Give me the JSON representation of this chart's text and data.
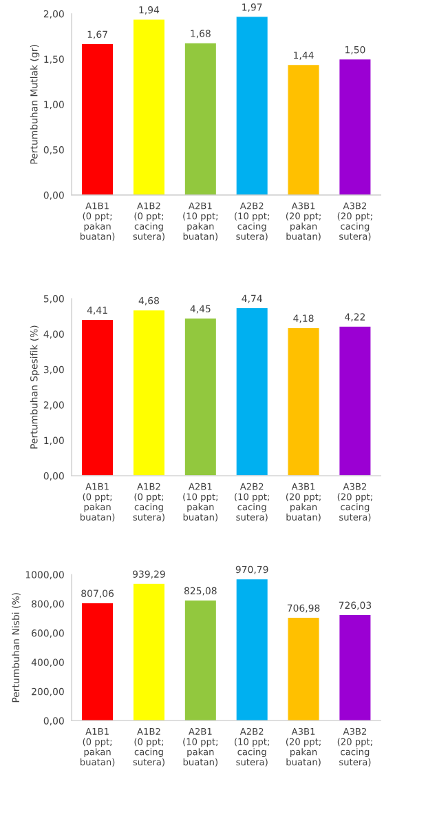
{
  "chart_data": [
    {
      "type": "bar",
      "ylabel": "Pertumbuhan Mutlak (gr)",
      "categories": [
        "A1B1\n(0 ppt;\npakan\nbuatan)",
        "A1B2\n(0 ppt;\ncacing\nsutera)",
        "A2B1\n(10 ppt;\npakan\nbuatan)",
        "A2B2\n(10 ppt;\ncacing\nsutera)",
        "A3B1\n(20 ppt;\npakan\nbuatan)",
        "A3B2\n(20 ppt;\ncacing\nsutera)"
      ],
      "values": [
        1.67,
        1.94,
        1.68,
        1.97,
        1.44,
        1.5
      ],
      "value_labels": [
        "1,67",
        "1,94",
        "1,68",
        "1,97",
        "1,44",
        "1,50"
      ],
      "colors": [
        "#ff0000",
        "#ffff00",
        "#92c83e",
        "#00b0f0",
        "#ffc000",
        "#9b00d3"
      ],
      "ylim": [
        0,
        2
      ],
      "yticks": [
        {
          "value": 0,
          "label": "0,00"
        },
        {
          "value": 0.5,
          "label": "0,50"
        },
        {
          "value": 1,
          "label": "1,00"
        },
        {
          "value": 1.5,
          "label": "1,50"
        },
        {
          "value": 2,
          "label": "2,00"
        }
      ],
      "grid": false,
      "legend": false
    },
    {
      "type": "bar",
      "ylabel": "Pertumbuhan Spesifik (%)",
      "categories": [
        "A1B1\n(0 ppt;\npakan\nbuatan)",
        "A1B2\n(0 ppt;\ncacing\nsutera)",
        "A2B1\n(10 ppt;\npakan\nbuatan)",
        "A2B2\n(10 ppt;\ncacing\nsutera)",
        "A3B1\n(20 ppt;\npakan\nbuatan)",
        "A3B2\n(20 ppt;\ncacing\nsutera)"
      ],
      "values": [
        4.41,
        4.68,
        4.45,
        4.74,
        4.18,
        4.22
      ],
      "value_labels": [
        "4,41",
        "4,68",
        "4,45",
        "4,74",
        "4,18",
        "4,22"
      ],
      "colors": [
        "#ff0000",
        "#ffff00",
        "#92c83e",
        "#00b0f0",
        "#ffc000",
        "#9b00d3"
      ],
      "ylim": [
        0,
        5
      ],
      "yticks": [
        {
          "value": 0,
          "label": "0,00"
        },
        {
          "value": 1,
          "label": "1,00"
        },
        {
          "value": 2,
          "label": "2,00"
        },
        {
          "value": 3,
          "label": "3,00"
        },
        {
          "value": 4,
          "label": "4,00"
        },
        {
          "value": 5,
          "label": "5,00"
        }
      ],
      "grid": false,
      "legend": false
    },
    {
      "type": "bar",
      "ylabel": "Pertumbuhan Nisbi (%)",
      "categories": [
        "A1B1\n(0 ppt;\npakan\nbuatan)",
        "A1B2\n(0 ppt;\ncacing\nsutera)",
        "A2B1\n(10 ppt;\npakan\nbuatan)",
        "A2B2\n(10 ppt;\ncacing\nsutera)",
        "A3B1\n(20 ppt;\npakan\nbuatan)",
        "A3B2\n(20 ppt;\ncacing\nsutera)"
      ],
      "values": [
        807.06,
        939.29,
        825.08,
        970.79,
        706.98,
        726.03
      ],
      "value_labels": [
        "807,06",
        "939,29",
        "825,08",
        "970,79",
        "706,98",
        "726,03"
      ],
      "colors": [
        "#ff0000",
        "#ffff00",
        "#92c83e",
        "#00b0f0",
        "#ffc000",
        "#9b00d3"
      ],
      "ylim": [
        0,
        1000
      ],
      "yticks": [
        {
          "value": 0,
          "label": "0,00"
        },
        {
          "value": 200,
          "label": "200,00"
        },
        {
          "value": 400,
          "label": "400,00"
        },
        {
          "value": 600,
          "label": "600,00"
        },
        {
          "value": 800,
          "label": "800,00"
        },
        {
          "value": 1000,
          "label": "1000,00"
        }
      ],
      "grid": false,
      "legend": false
    }
  ]
}
